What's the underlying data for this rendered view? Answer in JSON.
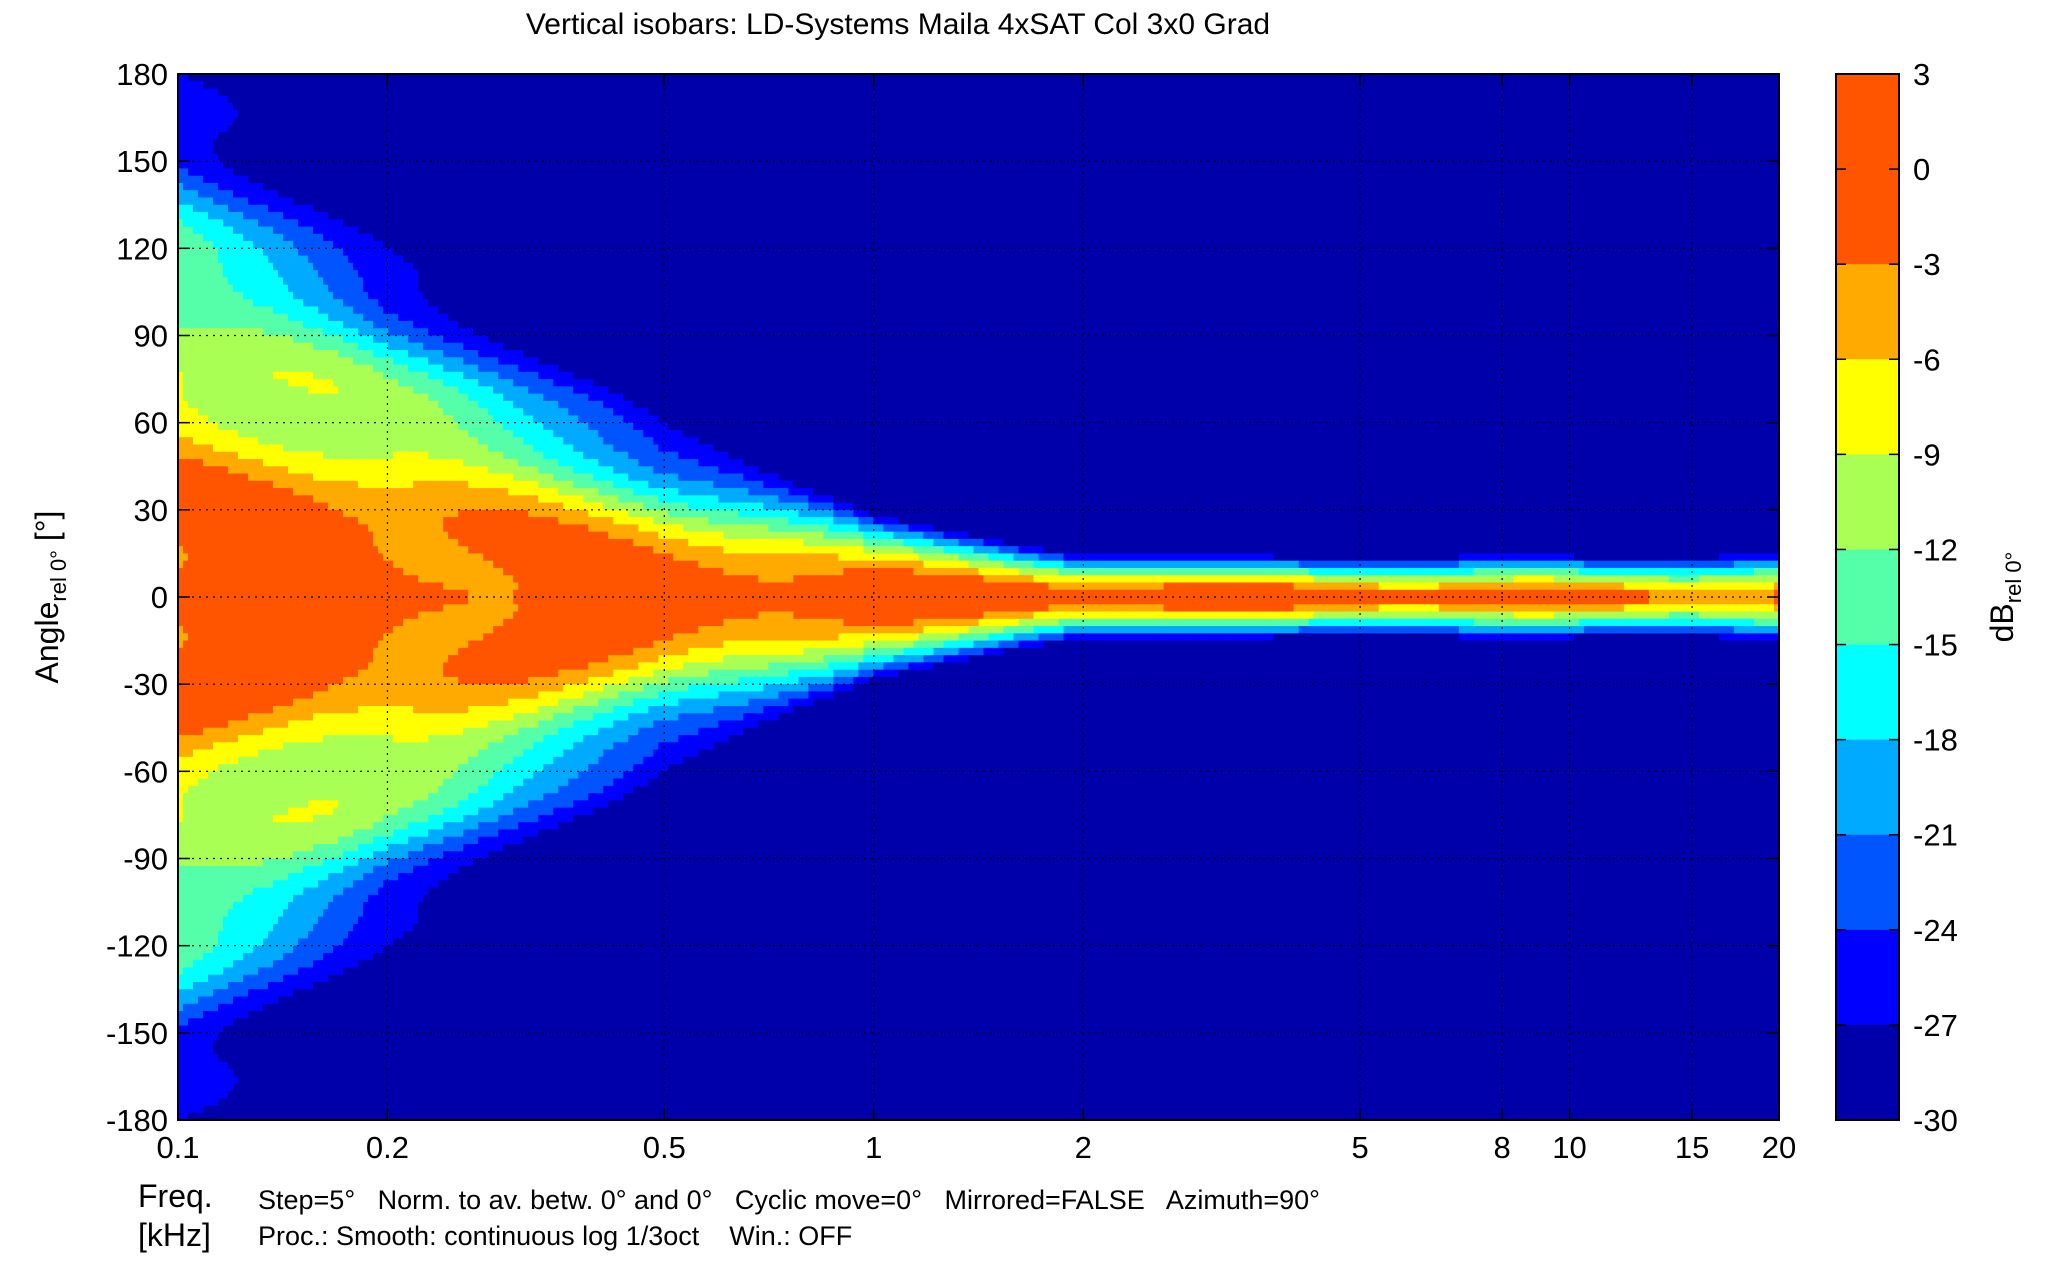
{
  "chart_data": {
    "type": "heatmap",
    "title": "Vertical isobars: LD-Systems  Maila  4xSAT Col 3x0 Grad",
    "xlabel": [
      "Freq.",
      "[kHz]"
    ],
    "ylabel": {
      "base": "Angle",
      "sub": "rel 0°",
      "unit": " [°]"
    },
    "colorbar_label": {
      "base": "dB",
      "sub": "rel 0°"
    },
    "x_scale": "log",
    "xlim": [
      0.1,
      20
    ],
    "x_ticks": [
      0.1,
      0.2,
      0.5,
      1,
      2,
      5,
      8,
      10,
      15,
      20
    ],
    "x_tick_labels": [
      "0.1",
      "0.2",
      "0.5",
      "1",
      "2",
      "5",
      "8",
      "10",
      "15",
      "20"
    ],
    "ylim": [
      -180,
      180
    ],
    "y_ticks": [
      180,
      150,
      120,
      90,
      60,
      30,
      0,
      -30,
      -60,
      -90,
      -120,
      -150,
      -180
    ],
    "y_tick_labels": [
      "180",
      "150",
      "120",
      "90",
      "60",
      "30",
      "0",
      "-30",
      "-60",
      "-90",
      "-120",
      "-150",
      "-180"
    ],
    "grid": true,
    "color_levels": [
      3,
      0,
      -3,
      -6,
      -9,
      -12,
      -15,
      -18,
      -21,
      -24,
      -27,
      -30
    ],
    "color_level_labels": [
      "3",
      "0",
      "-3",
      "-6",
      "-9",
      "-12",
      "-15",
      "-18",
      "-21",
      "-24",
      "-27",
      "-30"
    ],
    "colormap": [
      "#ff5500",
      "#ff5500",
      "#ffaa00",
      "#ffff00",
      "#aaff55",
      "#55ffaa",
      "#00ffff",
      "#00aaff",
      "#0055ff",
      "#0000ff",
      "#0000aa"
    ],
    "main_lobe": [
      {
        "freq_khz": 0.1,
        "angle_minus6db": 60
      },
      {
        "freq_khz": 0.2,
        "angle_minus6db": 40
      },
      {
        "freq_khz": 0.5,
        "angle_minus6db": 20
      },
      {
        "freq_khz": 1,
        "angle_minus6db": 10
      },
      {
        "freq_khz": 2,
        "angle_minus6db": 5
      },
      {
        "freq_khz": 5,
        "angle_minus6db": 5
      },
      {
        "freq_khz": 10,
        "angle_minus6db": 5
      },
      {
        "freq_khz": 20,
        "angle_minus6db": 5
      }
    ]
  },
  "footer": {
    "line1": "Step=5°   Norm. to av. betw. 0° and 0°   Cyclic move=0°   Mirrored=FALSE   Azimuth=90°",
    "line2": "Proc.: Smooth: continuous log 1/3oct    Win.: OFF"
  }
}
